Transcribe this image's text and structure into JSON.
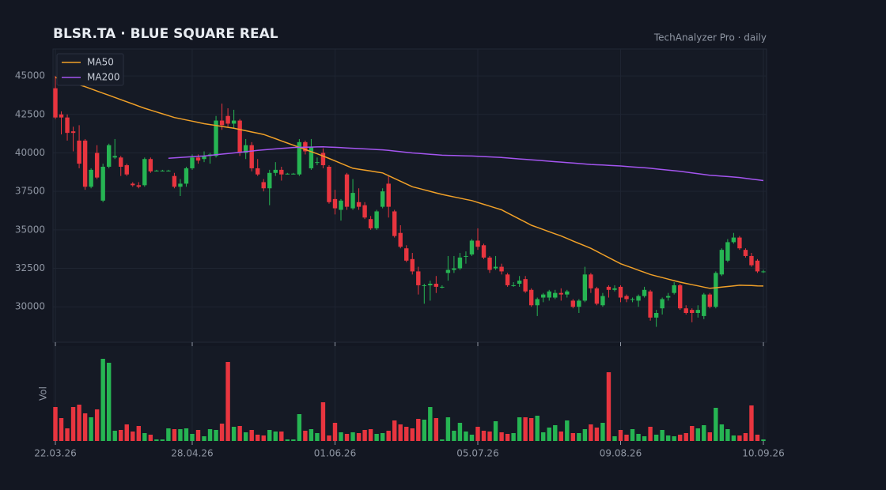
{
  "chart_data": {
    "type": "candlestick",
    "title": "BLSR.TA  ·  BLUE SQUARE REAL",
    "subtitle": "TechAnalyzer Pro · daily",
    "volume_label": "Vol",
    "categories": [
      "22.03.26",
      null,
      null,
      null,
      null,
      null,
      null,
      null,
      null,
      null,
      null,
      null,
      null,
      null,
      null,
      null,
      null,
      null,
      null,
      null,
      null,
      null,
      null,
      "28.04.26",
      null,
      null,
      null,
      null,
      null,
      null,
      null,
      null,
      null,
      null,
      null,
      null,
      null,
      null,
      null,
      null,
      null,
      null,
      null,
      null,
      null,
      null,
      null,
      "01.06.26",
      null,
      null,
      null,
      null,
      null,
      null,
      null,
      null,
      null,
      null,
      null,
      null,
      null,
      null,
      null,
      null,
      null,
      null,
      null,
      null,
      null,
      null,
      null,
      "05.07.26",
      null,
      null,
      null,
      null,
      null,
      null,
      null,
      null,
      null,
      null,
      null,
      null,
      null,
      null,
      null,
      null,
      null,
      null,
      null,
      null,
      null,
      null,
      null,
      "09.08.26",
      null,
      null,
      null,
      null,
      null,
      null,
      null,
      null,
      null,
      null,
      null,
      null,
      null,
      null,
      null,
      null,
      null,
      null,
      null,
      null,
      null,
      null,
      null,
      "10.09.26"
    ],
    "open": [
      44200,
      42500,
      42300,
      41400,
      40800,
      40800,
      37800,
      40000,
      36900,
      39100,
      39700,
      39700,
      39200,
      38000,
      37900,
      37900,
      39600,
      38850,
      38850,
      38850,
      38500,
      37800,
      38000,
      39000,
      39700,
      39600,
      39800,
      39800,
      42100,
      42400,
      41900,
      42100,
      40000,
      40500,
      39000,
      38100,
      37700,
      38700,
      38900,
      38650,
      38650,
      38600,
      40700,
      39000,
      39400,
      40000,
      39100,
      37000,
      36300,
      38600,
      36400,
      36800,
      36600,
      35700,
      35100,
      36500,
      38000,
      36200,
      34800,
      33800,
      33100,
      32300,
      31400,
      31400,
      31500,
      31300,
      32200,
      32400,
      32500,
      33300,
      33400,
      34300,
      34000,
      33200,
      32500,
      32600,
      32100,
      31400,
      31500,
      31800,
      31100,
      30100,
      30600,
      30600,
      30600,
      30900,
      30800,
      30400,
      30000,
      30400,
      32100,
      31200,
      30100,
      31300,
      31100,
      31300,
      30700,
      30500,
      30400,
      30700,
      31000,
      29300,
      29900,
      30600,
      30900,
      31400,
      29900,
      29800,
      29600,
      29400,
      30800,
      30000,
      32100,
      33000,
      34200,
      34500,
      33700,
      33300,
      33000,
      32300
    ],
    "high": [
      45000,
      42700,
      42500,
      41700,
      41800,
      40900,
      39000,
      40500,
      39300,
      40600,
      40900,
      39800,
      39300,
      38100,
      38100,
      39700,
      39700,
      38900,
      38900,
      38900,
      38700,
      38300,
      39100,
      39900,
      39900,
      40100,
      40000,
      42400,
      43200,
      42900,
      42800,
      42200,
      40900,
      40700,
      39600,
      38300,
      38900,
      39400,
      39100,
      38700,
      38700,
      40900,
      40800,
      40900,
      39700,
      40300,
      39200,
      37600,
      37000,
      38700,
      38300,
      37700,
      36800,
      35900,
      36300,
      37700,
      38500,
      36300,
      35300,
      34000,
      33500,
      32600,
      31500,
      31700,
      32000,
      31400,
      33300,
      33300,
      33500,
      33600,
      34400,
      35100,
      34100,
      33300,
      33300,
      32800,
      32200,
      31600,
      32000,
      32000,
      31200,
      30600,
      30900,
      31100,
      31100,
      31200,
      31100,
      30500,
      30500,
      32600,
      32200,
      31300,
      30900,
      31400,
      31400,
      31400,
      30800,
      30600,
      30800,
      31300,
      31100,
      29800,
      30600,
      30900,
      31600,
      31500,
      30100,
      29900,
      30100,
      30900,
      30900,
      32300,
      33800,
      34400,
      34800,
      34600,
      33800,
      33500,
      33100,
      32400
    ],
    "low": [
      42200,
      41200,
      40800,
      40100,
      39000,
      37600,
      37700,
      38300,
      36800,
      39000,
      39600,
      38500,
      38500,
      37800,
      37700,
      37800,
      38700,
      38800,
      38800,
      38800,
      37700,
      37200,
      37800,
      38900,
      39300,
      39400,
      39300,
      39700,
      41500,
      41700,
      41600,
      39800,
      39600,
      38800,
      38500,
      37500,
      36600,
      38500,
      38200,
      38600,
      38600,
      38500,
      39900,
      38900,
      39200,
      39000,
      36700,
      36000,
      35600,
      36300,
      36300,
      36300,
      35700,
      35000,
      35000,
      36400,
      35800,
      34500,
      33800,
      32900,
      32100,
      30800,
      30200,
      30400,
      30900,
      31200,
      31700,
      32200,
      32400,
      32800,
      33300,
      33700,
      33100,
      32200,
      32400,
      32100,
      31300,
      31300,
      31300,
      30900,
      30000,
      29400,
      30300,
      30400,
      30500,
      30400,
      30600,
      29900,
      29600,
      30300,
      30900,
      30100,
      30000,
      30600,
      31000,
      30300,
      30300,
      30300,
      30000,
      30600,
      29100,
      28700,
      29500,
      30400,
      30800,
      29800,
      29500,
      29000,
      29300,
      29200,
      29900,
      29900,
      32000,
      32900,
      34100,
      33700,
      33200,
      32600,
      32200,
      32200
    ],
    "close": [
      42300,
      42300,
      41300,
      41300,
      39300,
      37800,
      38900,
      38400,
      39100,
      40500,
      39800,
      39100,
      38600,
      37900,
      37800,
      39600,
      38800,
      38850,
      38850,
      38850,
      37800,
      38000,
      39000,
      39700,
      39500,
      39800,
      39900,
      42100,
      41800,
      41900,
      42100,
      40000,
      40500,
      39000,
      38600,
      37700,
      38700,
      38900,
      38600,
      38650,
      38650,
      40700,
      40100,
      40400,
      39400,
      39200,
      36800,
      36400,
      36900,
      36500,
      37400,
      36500,
      35800,
      35100,
      36200,
      37500,
      36500,
      34600,
      33900,
      33000,
      32300,
      31400,
      31400,
      31500,
      31300,
      31300,
      32400,
      32500,
      33200,
      33300,
      34300,
      33900,
      33200,
      32400,
      32600,
      32300,
      31400,
      31400,
      31700,
      31000,
      30100,
      30500,
      30800,
      31000,
      30900,
      30800,
      31000,
      30000,
      30400,
      32100,
      31200,
      30200,
      30700,
      31100,
      31200,
      30600,
      30500,
      30500,
      30700,
      31100,
      29300,
      29600,
      30500,
      30700,
      31400,
      29900,
      29600,
      29600,
      29800,
      30800,
      30000,
      32200,
      33700,
      34200,
      34500,
      33800,
      33300,
      32700,
      32300,
      32300
    ],
    "volume": [
      43,
      29,
      16,
      43,
      46,
      35,
      30,
      40,
      104,
      99,
      13,
      14,
      21,
      12,
      19,
      10,
      8,
      2,
      2,
      16,
      15,
      15,
      16,
      9,
      14,
      6,
      15,
      14,
      22,
      100,
      18,
      19,
      11,
      14,
      8,
      7,
      14,
      12,
      12,
      2,
      2,
      34,
      13,
      15,
      10,
      49,
      7,
      23,
      11,
      9,
      11,
      10,
      14,
      15,
      9,
      10,
      13,
      26,
      21,
      18,
      16,
      28,
      27,
      43,
      29,
      2,
      30,
      13,
      23,
      12,
      8,
      18,
      13,
      12,
      25,
      11,
      9,
      10,
      30,
      30,
      29,
      32,
      11,
      17,
      20,
      12,
      26,
      10,
      10,
      15,
      21,
      17,
      23,
      87,
      6,
      14,
      8,
      15,
      9,
      6,
      18,
      8,
      14,
      7,
      6,
      8,
      10,
      19,
      16,
      20,
      11,
      42,
      21,
      15,
      7,
      7,
      10,
      45,
      8,
      2
    ],
    "vlim": [
      0,
      110
    ],
    "ylim": [
      27700,
      46750
    ],
    "yticks": [
      30000,
      32500,
      35000,
      37500,
      40000,
      42500,
      45000
    ],
    "grid": true,
    "legend": "upper-left",
    "up_color": "#26b553",
    "down_color": "#e8353f",
    "series": [
      {
        "name": "MA50",
        "color": "#f0a028",
        "values": [
          44900,
          44780,
          44660,
          44540,
          44420,
          44300,
          44160,
          44020,
          43880,
          43740,
          43600,
          43460,
          43320,
          43180,
          43040,
          42900,
          42780,
          42660,
          42540,
          42420,
          42300,
          42220,
          42140,
          42060,
          41980,
          41900,
          41840,
          41780,
          41720,
          41660,
          41600,
          41520,
          41440,
          41360,
          41280,
          41200,
          41060,
          40920,
          40780,
          40640,
          40500,
          40360,
          40220,
          40080,
          39940,
          39800,
          39640,
          39480,
          39320,
          39160,
          39000,
          38940,
          38880,
          38820,
          38760,
          38700,
          38520,
          38340,
          38160,
          37980,
          37800,
          37700,
          37600,
          37500,
          37400,
          37300,
          37220,
          37140,
          37060,
          36980,
          36900,
          36780,
          36660,
          36540,
          36420,
          36300,
          36100,
          35900,
          35700,
          35500,
          35300,
          35160,
          35020,
          34880,
          34740,
          34600,
          34440,
          34280,
          34120,
          33960,
          33800,
          33600,
          33400,
          33200,
          33000,
          32800,
          32660,
          32520,
          32380,
          32240,
          32100,
          32000,
          31900,
          31800,
          31700,
          31600,
          31520,
          31440,
          31360,
          31280,
          31200,
          31240,
          31280,
          31320,
          31360,
          31400,
          31390,
          31380,
          31360,
          31350
        ]
      },
      {
        "name": "MA200",
        "color": "#a455f0",
        "values": [
          null,
          null,
          null,
          null,
          null,
          null,
          null,
          null,
          null,
          null,
          null,
          null,
          null,
          null,
          null,
          null,
          null,
          null,
          null,
          39650,
          39675,
          39700,
          39725,
          39750,
          39775,
          39800,
          39840,
          39880,
          39920,
          39960,
          40000,
          40040,
          40080,
          40120,
          40160,
          40200,
          40230,
          40260,
          40290,
          40320,
          40350,
          40360,
          40370,
          40380,
          40390,
          40400,
          40380,
          40360,
          40340,
          40320,
          40300,
          40280,
          40260,
          40240,
          40220,
          40200,
          40160,
          40120,
          40080,
          40040,
          40000,
          39970,
          39940,
          39910,
          39880,
          39850,
          39840,
          39830,
          39820,
          39810,
          39800,
          39780,
          39760,
          39740,
          39720,
          39700,
          39670,
          39640,
          39610,
          39580,
          39550,
          39520,
          39490,
          39460,
          39430,
          39400,
          39370,
          39340,
          39310,
          39280,
          39250,
          39230,
          39210,
          39190,
          39170,
          39150,
          39120,
          39090,
          39060,
          39030,
          39000,
          38960,
          38920,
          38880,
          38840,
          38800,
          38750,
          38700,
          38650,
          38600,
          38550,
          38520,
          38490,
          38460,
          38430,
          38400,
          38350,
          38300,
          38250,
          38200
        ]
      }
    ]
  }
}
